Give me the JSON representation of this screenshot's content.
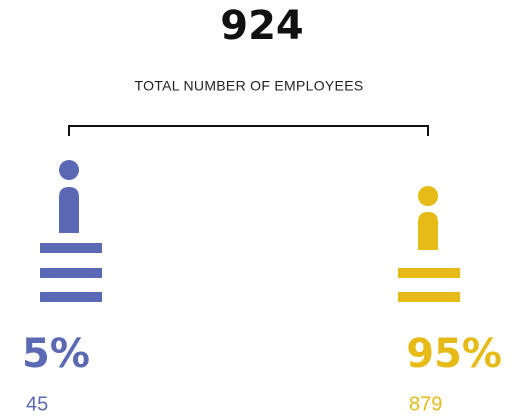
{
  "total": "924",
  "subtitle": "TOTAL NUMBER OF EMPLOYEES",
  "groups": [
    {
      "percent": "5%",
      "count": "45",
      "color": "#5b69b5"
    },
    {
      "percent": "95%",
      "count": "879",
      "color": "#e6bb17"
    }
  ]
}
